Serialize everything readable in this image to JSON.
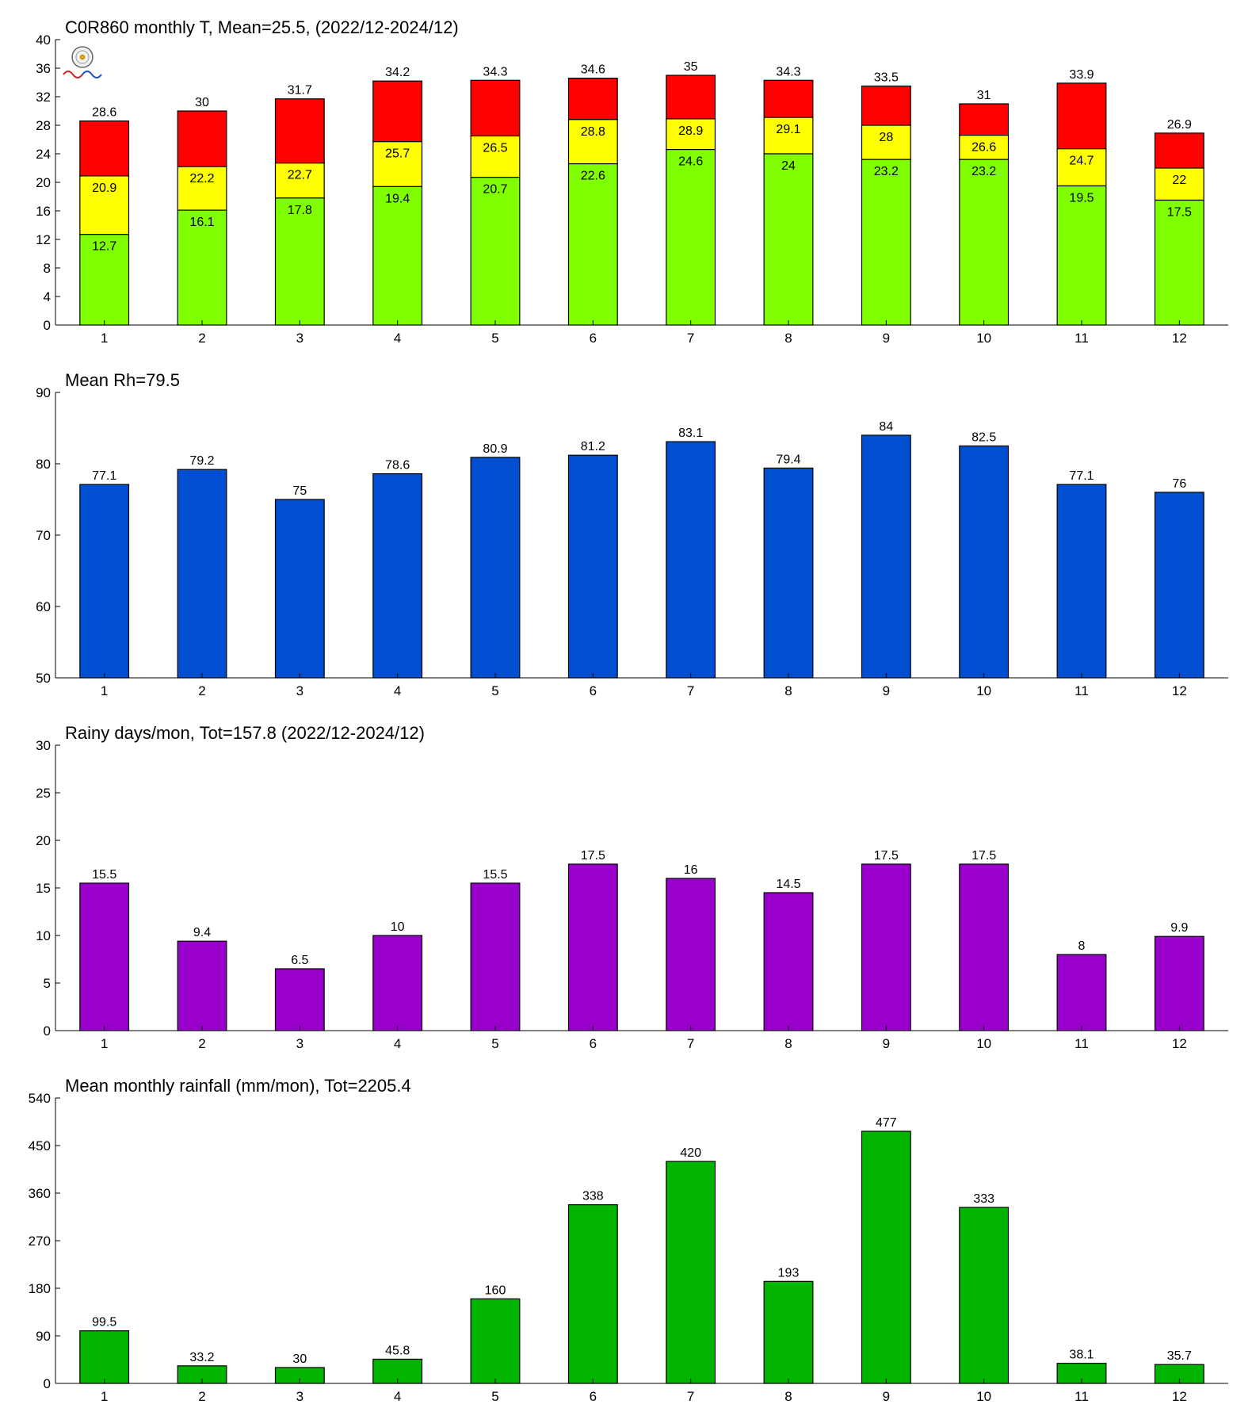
{
  "chart_data": [
    {
      "type": "bar",
      "title": "C0R860 monthly T, Mean=25.5, (2022/12-2024/12)",
      "xlabel": "",
      "ylabel": "",
      "categories": [
        "1",
        "2",
        "3",
        "4",
        "5",
        "6",
        "7",
        "8",
        "9",
        "10",
        "11",
        "12"
      ],
      "ylim": [
        0,
        40
      ],
      "yticks": [
        0,
        4,
        8,
        12,
        16,
        20,
        24,
        28,
        32,
        36,
        40
      ],
      "stack_mode": "overlay",
      "series": [
        {
          "values": [
            28.6,
            30,
            31.7,
            34.2,
            34.3,
            34.6,
            35,
            34.3,
            33.5,
            31,
            33.9,
            26.9
          ],
          "color": "#ff0000",
          "label_position": "above"
        },
        {
          "values": [
            20.9,
            22.2,
            22.7,
            25.7,
            26.5,
            28.8,
            28.9,
            29.1,
            28,
            26.6,
            24.7,
            22
          ],
          "color": "#ffff00",
          "label_position": "inside"
        },
        {
          "values": [
            12.7,
            16.1,
            17.8,
            19.4,
            20.7,
            22.6,
            24.6,
            24,
            23.2,
            23.2,
            19.5,
            17.5
          ],
          "color": "#80ff00",
          "label_position": "inside"
        }
      ],
      "logo": "weather-station-lab-logo"
    },
    {
      "type": "bar",
      "title": "Mean Rh=79.5",
      "xlabel": "",
      "ylabel": "",
      "categories": [
        "1",
        "2",
        "3",
        "4",
        "5",
        "6",
        "7",
        "8",
        "9",
        "10",
        "11",
        "12"
      ],
      "ylim": [
        50,
        90
      ],
      "yticks": [
        50,
        60,
        70,
        80,
        90
      ],
      "series": [
        {
          "values": [
            77.1,
            79.2,
            75,
            78.6,
            80.9,
            81.2,
            83.1,
            79.4,
            84,
            82.5,
            77.1,
            76
          ],
          "color": "#004fd0",
          "label_position": "above"
        }
      ]
    },
    {
      "type": "bar",
      "title": "Rainy days/mon, Tot=157.8 (2022/12-2024/12)",
      "xlabel": "",
      "ylabel": "",
      "categories": [
        "1",
        "2",
        "3",
        "4",
        "5",
        "6",
        "7",
        "8",
        "9",
        "10",
        "11",
        "12"
      ],
      "ylim": [
        0,
        30
      ],
      "yticks": [
        0,
        5,
        10,
        15,
        20,
        25,
        30
      ],
      "series": [
        {
          "values": [
            15.5,
            9.4,
            6.5,
            10,
            15.5,
            17.5,
            16,
            14.5,
            17.5,
            17.5,
            8,
            9.9
          ],
          "color": "#9900cc",
          "label_position": "above"
        }
      ]
    },
    {
      "type": "bar",
      "title": "Mean monthly rainfall (mm/mon), Tot=2205.4",
      "xlabel": "",
      "ylabel": "",
      "categories": [
        "1",
        "2",
        "3",
        "4",
        "5",
        "6",
        "7",
        "8",
        "9",
        "10",
        "11",
        "12"
      ],
      "ylim": [
        0,
        540
      ],
      "yticks": [
        0,
        90,
        180,
        270,
        360,
        450,
        540
      ],
      "series": [
        {
          "values": [
            99.5,
            33.2,
            30,
            45.8,
            160,
            338,
            420,
            193,
            477,
            333,
            38.1,
            35.7
          ],
          "color": "#00b400",
          "label_position": "above"
        }
      ]
    }
  ]
}
